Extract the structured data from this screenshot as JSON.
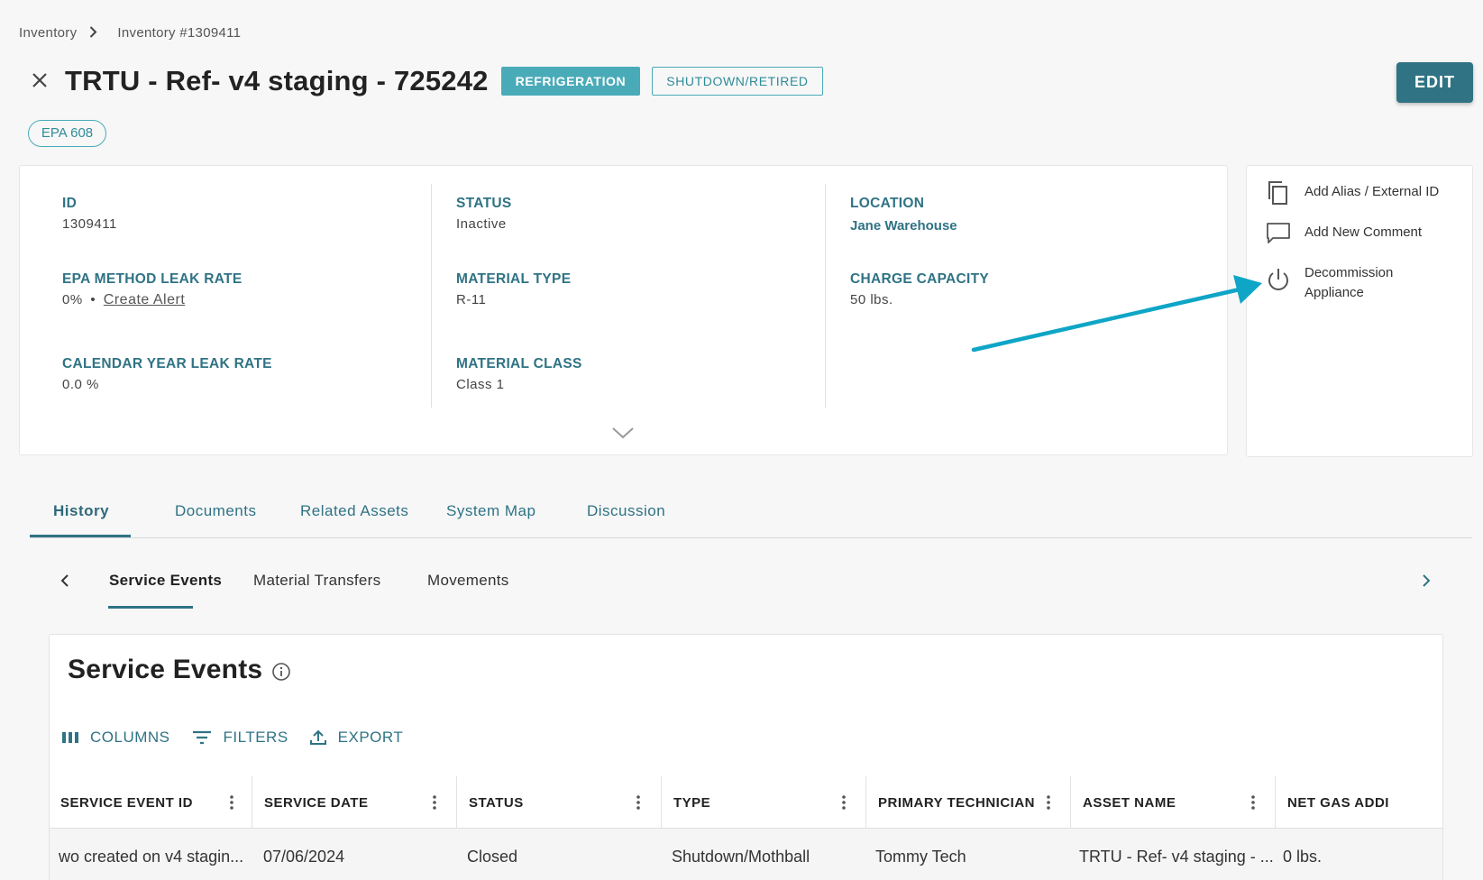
{
  "breadcrumb": {
    "root": "Inventory",
    "current": "Inventory #1309411"
  },
  "header": {
    "title": "TRTU - Ref- v4 staging - 725242",
    "badge_category": "REFRIGERATION",
    "badge_status": "SHUTDOWN/RETIRED",
    "chip": "EPA 608",
    "edit_label": "EDIT"
  },
  "details": {
    "id": {
      "label": "ID",
      "value": "1309411"
    },
    "epa_method_leak_rate": {
      "label": "EPA METHOD LEAK RATE",
      "value": "0%",
      "bullet": "•",
      "action": "Create Alert"
    },
    "calendar_year_leak_rate": {
      "label": "CALENDAR YEAR LEAK RATE",
      "value": "0.0 %"
    },
    "status": {
      "label": "STATUS",
      "value": "Inactive"
    },
    "material_type": {
      "label": "MATERIAL TYPE",
      "value": "R-11"
    },
    "material_class": {
      "label": "MATERIAL CLASS",
      "value": "Class 1"
    },
    "location": {
      "label": "LOCATION",
      "value": "Jane Warehouse"
    },
    "charge_capacity": {
      "label": "CHARGE CAPACITY",
      "value": "50 lbs."
    }
  },
  "actions": {
    "add_alias": "Add Alias / External ID",
    "add_comment": "Add New Comment",
    "decommission_line1": "Decommission",
    "decommission_line2": "Appliance"
  },
  "tabs": [
    "History",
    "Documents",
    "Related Assets",
    "System Map",
    "Discussion"
  ],
  "subtabs": [
    "Service Events",
    "Material Transfers",
    "Movements"
  ],
  "service_events": {
    "title": "Service Events",
    "toolbar": {
      "columns": "COLUMNS",
      "filters": "FILTERS",
      "export": "EXPORT"
    },
    "columns": [
      "SERVICE EVENT ID",
      "SERVICE DATE",
      "STATUS",
      "TYPE",
      "PRIMARY TECHNICIAN",
      "ASSET NAME",
      "NET GAS ADDI"
    ],
    "rows": [
      [
        "wo created on v4 stagin...",
        "07/06/2024",
        "Closed",
        "Shutdown/Mothball",
        "Tommy Tech",
        "TRTU - Ref- v4 staging - ...",
        "0 lbs."
      ]
    ]
  },
  "colors": {
    "accent": "#2f7384",
    "badge": "#4aabb8",
    "annotation_arrow": "#0ea5c6"
  }
}
